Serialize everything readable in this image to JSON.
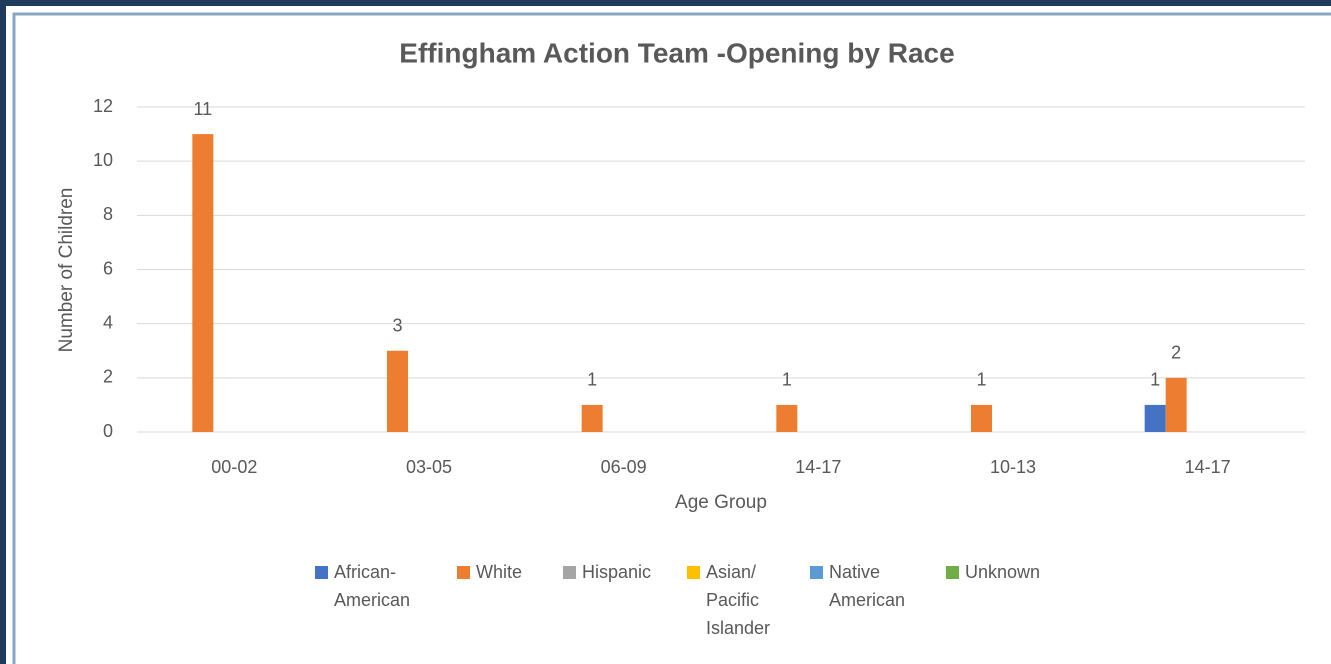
{
  "chart_data": {
    "type": "bar",
    "title": "Effingham Action Team -Opening by Race",
    "x_label": "Age Group",
    "y_label": "Number of Children",
    "categories": [
      "00-02",
      "03-05",
      "06-09",
      "14-17",
      "10-13",
      "14-17"
    ],
    "series": [
      {
        "name": "African-American",
        "color": "#4472c4",
        "values": [
          null,
          null,
          null,
          null,
          null,
          1
        ]
      },
      {
        "name": "White",
        "color": "#ed7d31",
        "values": [
          11,
          3,
          1,
          1,
          1,
          2
        ]
      },
      {
        "name": "Hispanic",
        "color": "#a5a5a5",
        "values": [
          null,
          null,
          null,
          null,
          null,
          null
        ]
      },
      {
        "name": "Asian/ Pacific Islander",
        "color": "#ffc000",
        "values": [
          null,
          null,
          null,
          null,
          null,
          null
        ]
      },
      {
        "name": "Native American",
        "color": "#5b9bd5",
        "values": [
          null,
          null,
          null,
          null,
          null,
          null
        ]
      },
      {
        "name": "Unknown",
        "color": "#70ad47",
        "values": [
          null,
          null,
          null,
          null,
          null,
          null
        ]
      }
    ],
    "ylim": [
      0,
      12
    ],
    "yticks": [
      0,
      2,
      4,
      6,
      8,
      10,
      12
    ],
    "grid": true,
    "legend": "bottom"
  }
}
